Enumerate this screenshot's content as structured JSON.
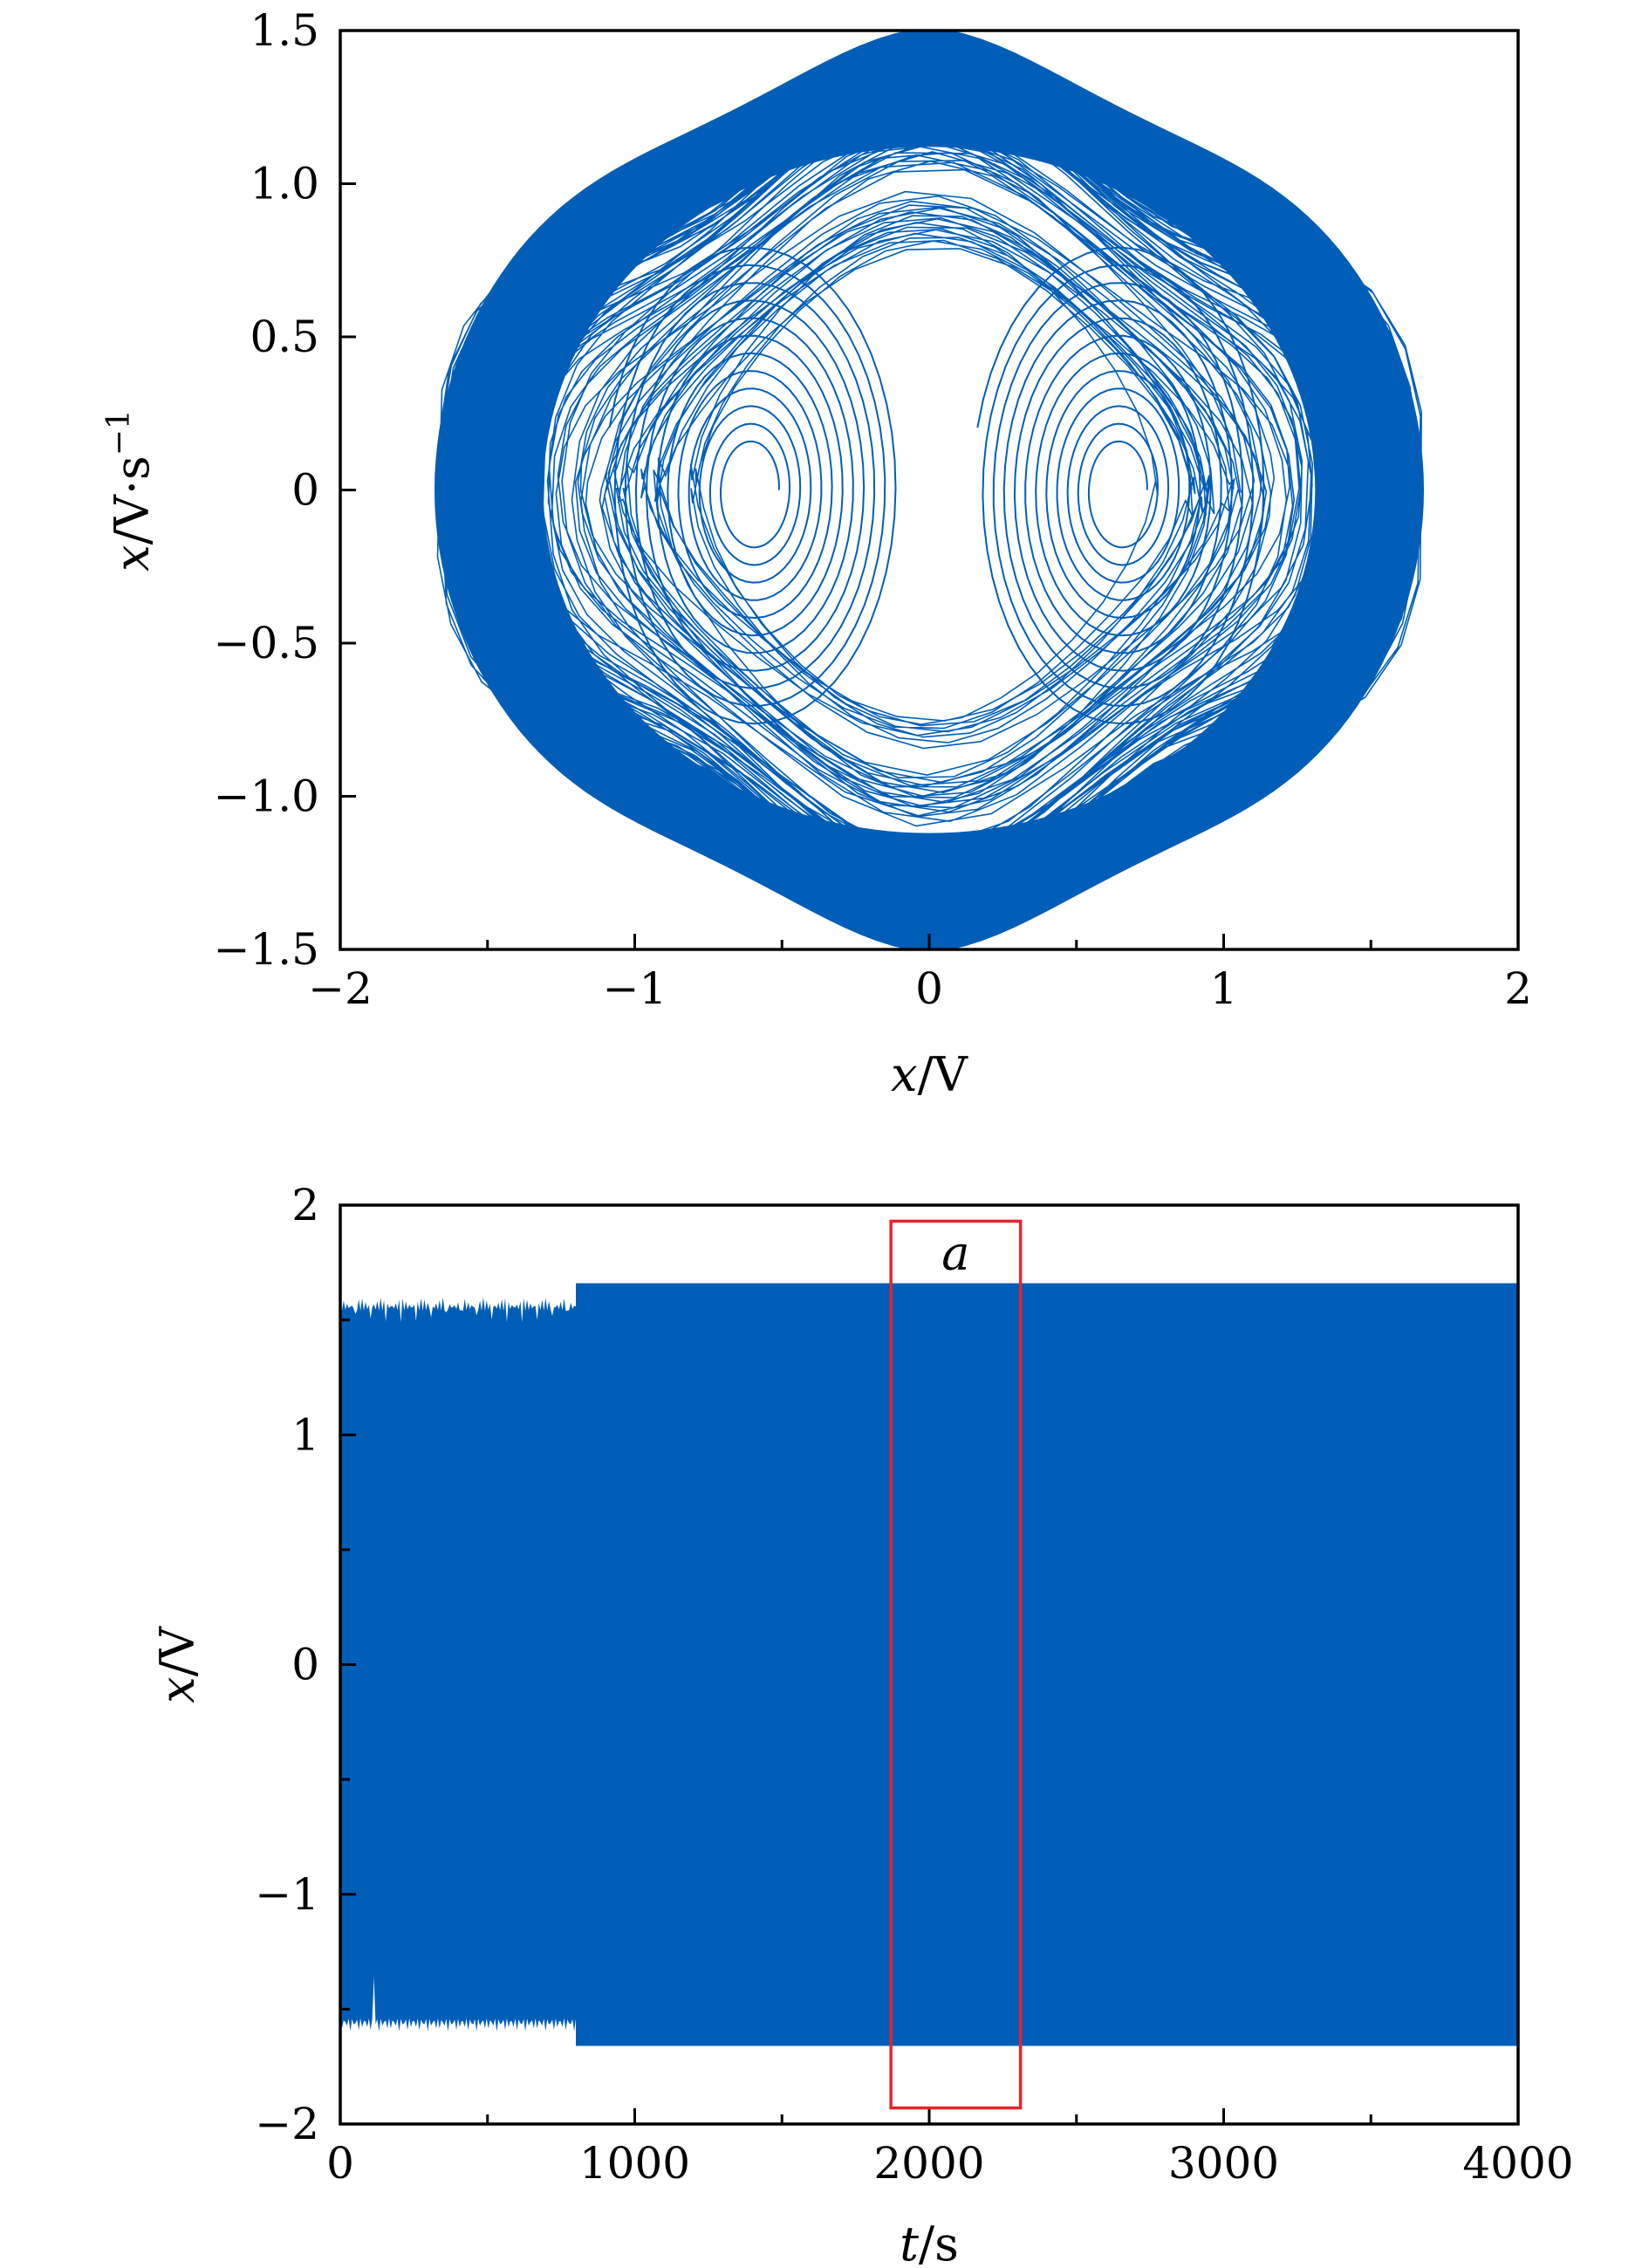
{
  "colors": {
    "trace": "#005eb8",
    "box": "#e8232a",
    "axis": "#000000"
  },
  "chart_data": [
    {
      "type": "line",
      "title": "",
      "xlabel": {
        "var": "x",
        "unit": "/V"
      },
      "ylabel": {
        "var": "x",
        "unit": "/V·s",
        "sup": "−1"
      },
      "xlim": [
        -2,
        2
      ],
      "ylim": [
        -1.5,
        1.5
      ],
      "xticks": [
        -2,
        -1,
        0,
        1,
        2
      ],
      "xtick_labels": [
        "−2",
        "−1",
        "0",
        "1",
        "2"
      ],
      "yticks": [
        -1.5,
        -1.0,
        -0.5,
        0,
        0.5,
        1.0,
        1.5
      ],
      "ytick_labels": [
        "−1.5",
        "−1.0",
        "−0.5",
        "0",
        "0.5",
        "1.0",
        "1.5"
      ],
      "minor_xticks": [
        -1.5,
        -0.5,
        0.5,
        1.5
      ],
      "grid": false,
      "series": [
        {
          "kind": "phase_portrait",
          "x_range": [
            -1.68,
            1.68
          ],
          "y_range": [
            -1.4,
            1.4
          ],
          "left_lobe_center": [
            -0.6,
            0.0
          ],
          "right_lobe_center": [
            0.65,
            0.0
          ]
        }
      ]
    },
    {
      "type": "line",
      "title": "",
      "xlabel": {
        "var": "t",
        "unit": "/s"
      },
      "ylabel": {
        "var": "x",
        "unit": "/V"
      },
      "xlim": [
        0,
        4000
      ],
      "ylim": [
        -2,
        2
      ],
      "xticks": [
        0,
        1000,
        2000,
        3000,
        4000
      ],
      "xtick_labels": [
        "0",
        "1000",
        "2000",
        "3000",
        "4000"
      ],
      "yticks": [
        -2,
        -1,
        0,
        1,
        2
      ],
      "ytick_labels": [
        "−2",
        "−1",
        "0",
        "1",
        "2"
      ],
      "minor_xticks": [
        500,
        1500,
        2500,
        3500
      ],
      "minor_yticks": [
        -1.5,
        -0.5,
        0.5,
        1.5
      ],
      "grid": false,
      "series": [
        {
          "kind": "envelope",
          "transient_end": 800,
          "transient_amplitude": 1.6,
          "steady_amplitude": 1.66,
          "t_range": [
            0,
            4000
          ]
        }
      ],
      "annotations": [
        {
          "label": "a",
          "x_range": [
            1870,
            2310
          ],
          "y_range": [
            -1.93,
            1.93
          ]
        }
      ]
    }
  ]
}
